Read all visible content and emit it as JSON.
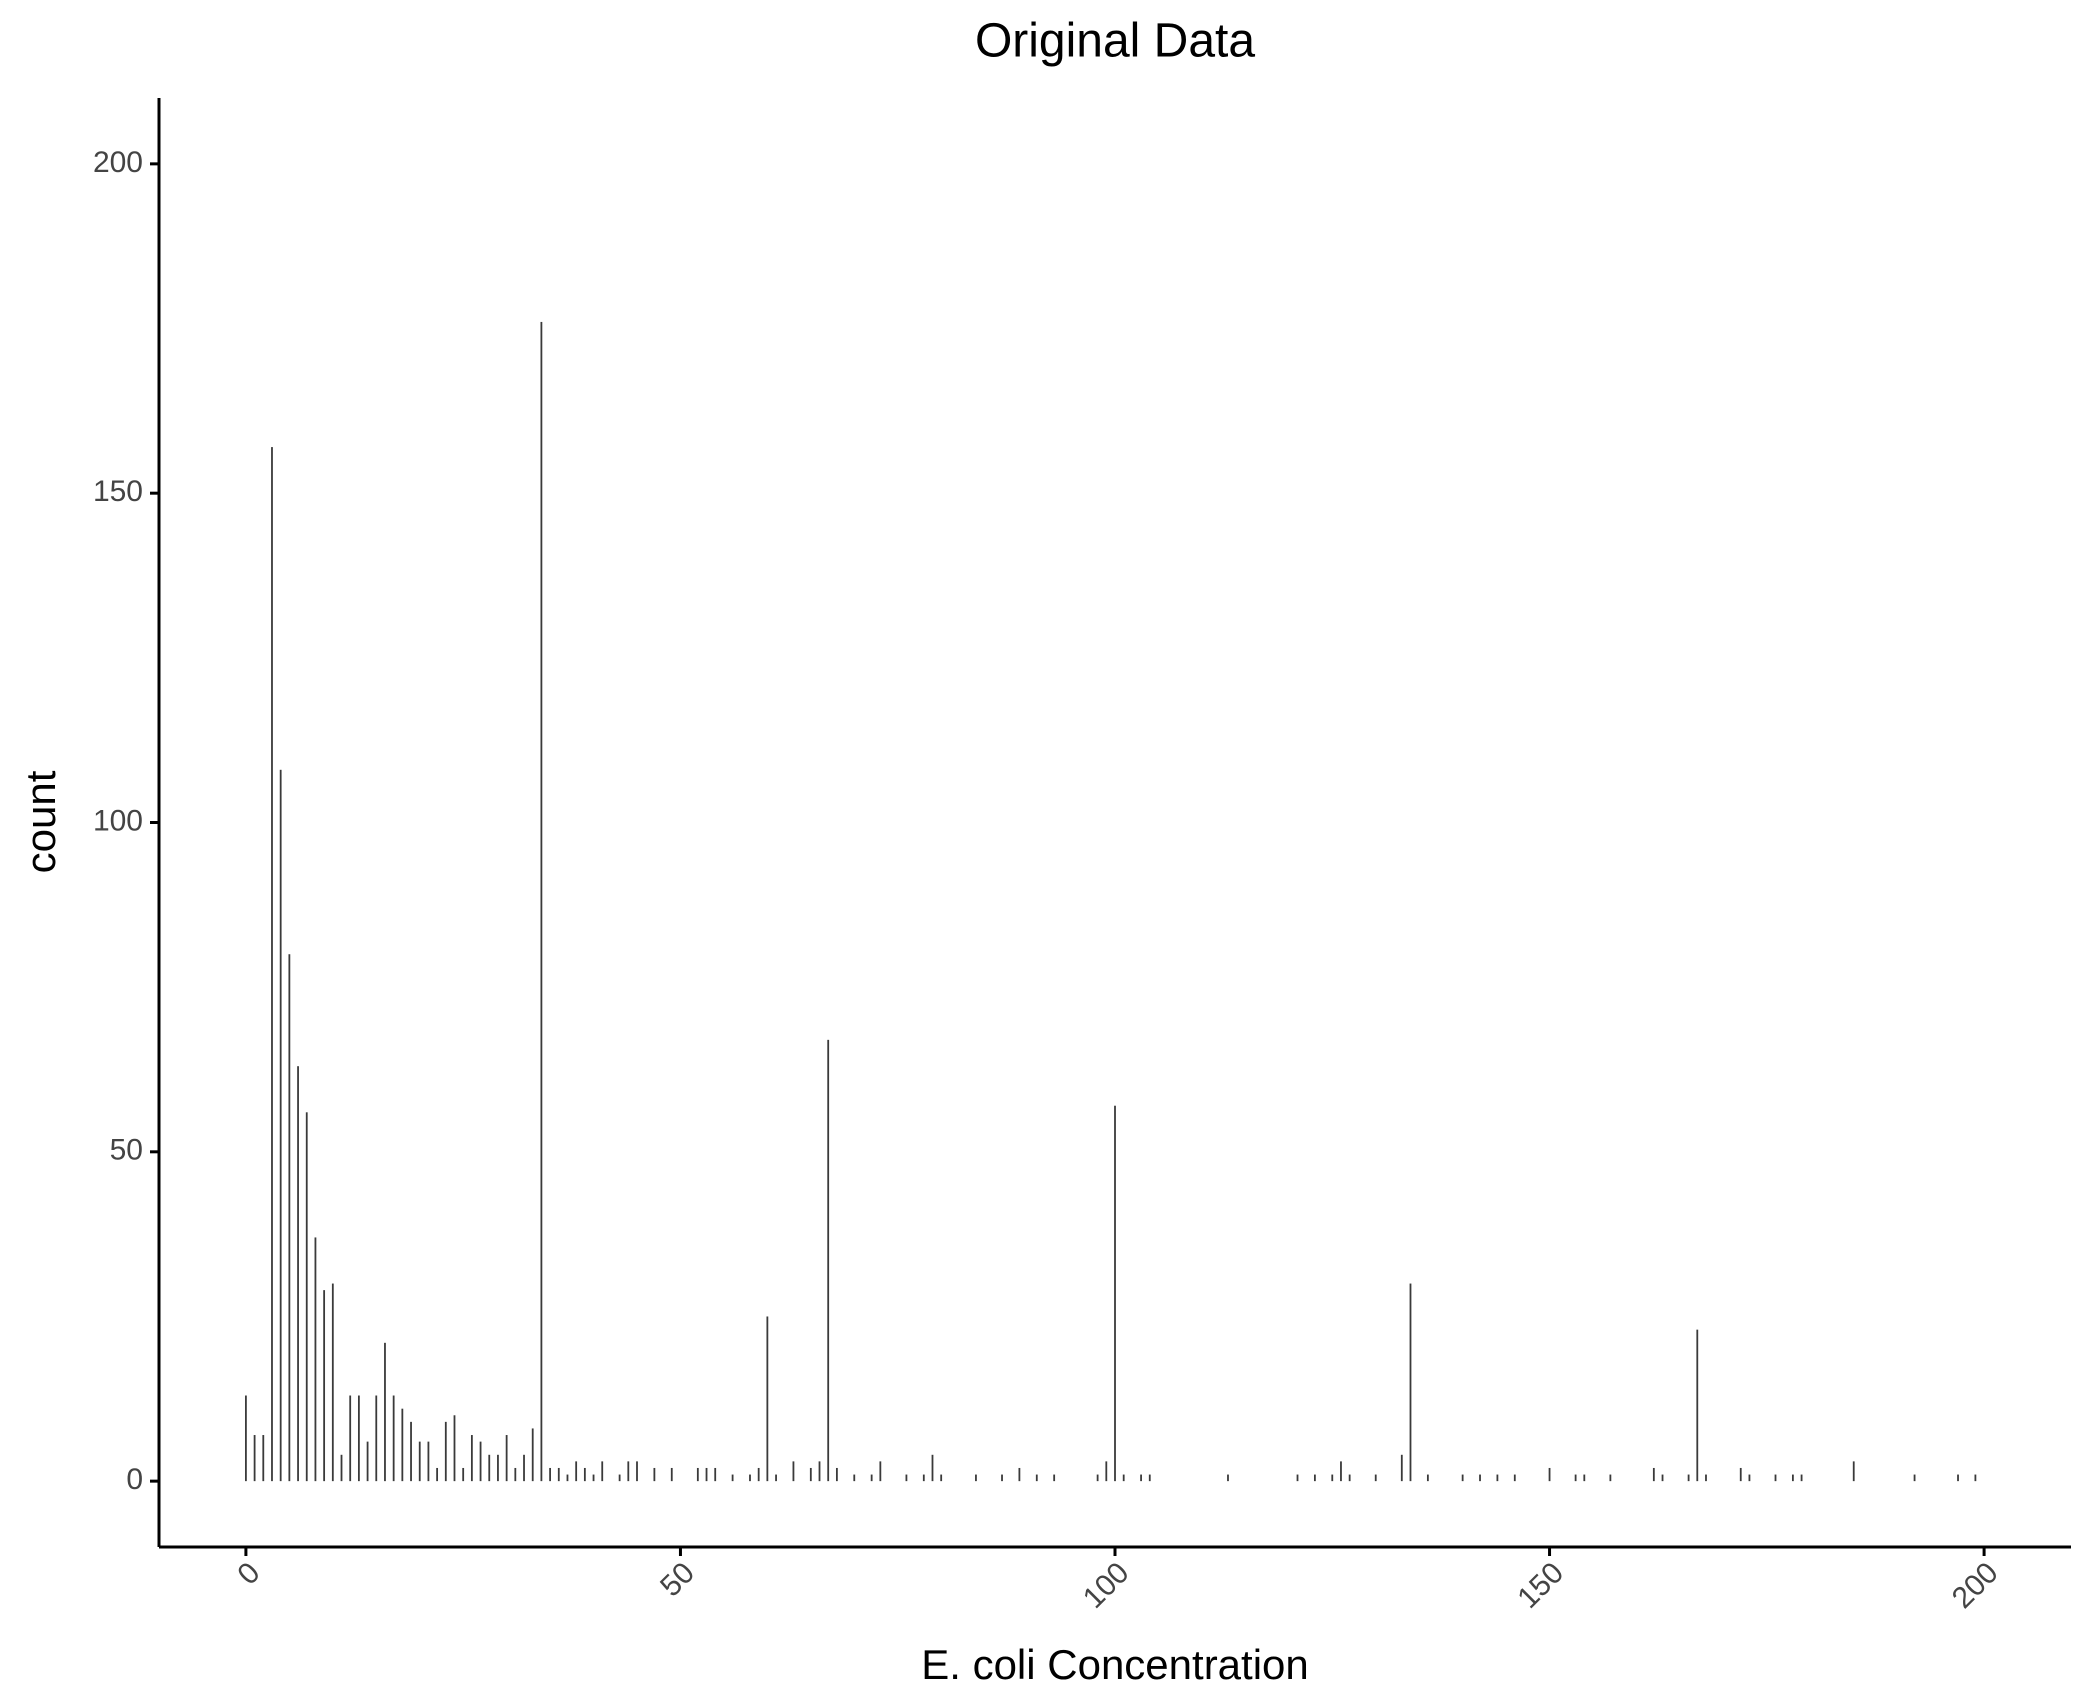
{
  "chart_data": {
    "type": "bar",
    "title": "Original Data",
    "x_label": "E. coli Concentration",
    "y_label": "count",
    "x": [
      0,
      1,
      2,
      3,
      4,
      5,
      6,
      7,
      8,
      9,
      10,
      11,
      12,
      13,
      14,
      15,
      16,
      17,
      18,
      19,
      20,
      21,
      22,
      23,
      24,
      25,
      26,
      27,
      28,
      29,
      30,
      31,
      32,
      33,
      34,
      35,
      36,
      37,
      38,
      39,
      40,
      41,
      43,
      44,
      45,
      47,
      49,
      52,
      53,
      54,
      56,
      58,
      59,
      60,
      61,
      63,
      65,
      66,
      67,
      68,
      70,
      72,
      73,
      76,
      78,
      79,
      80,
      84,
      87,
      89,
      91,
      93,
      98,
      99,
      100,
      101,
      103,
      104,
      113,
      121,
      123,
      125,
      126,
      127,
      130,
      133,
      134,
      136,
      140,
      142,
      144,
      146,
      150,
      153,
      154,
      157,
      162,
      163,
      166,
      167,
      168,
      172,
      173,
      176,
      178,
      179,
      185,
      192,
      197,
      199
    ],
    "values": [
      13,
      7,
      7,
      157,
      108,
      80,
      63,
      56,
      37,
      29,
      30,
      4,
      13,
      13,
      6,
      13,
      21,
      13,
      11,
      9,
      6,
      6,
      2,
      9,
      10,
      2,
      7,
      6,
      4,
      4,
      7,
      2,
      4,
      8,
      176,
      2,
      2,
      1,
      3,
      2,
      1,
      3,
      1,
      3,
      3,
      2,
      2,
      2,
      2,
      2,
      1,
      1,
      2,
      25,
      1,
      3,
      2,
      3,
      67,
      2,
      1,
      1,
      3,
      1,
      1,
      4,
      1,
      1,
      1,
      2,
      1,
      1,
      1,
      3,
      57,
      1,
      1,
      1,
      1,
      1,
      1,
      1,
      3,
      1,
      1,
      4,
      30,
      1,
      1,
      1,
      1,
      1,
      2,
      1,
      1,
      1,
      2,
      1,
      1,
      23,
      1,
      2,
      1,
      1,
      1,
      1,
      3,
      1,
      1,
      1
    ],
    "color": "#3a3a3a",
    "xlim": [
      -10,
      210
    ],
    "xticks": [
      0,
      50,
      100,
      150,
      200
    ],
    "ylim": [
      -10,
      210
    ],
    "yticks": [
      0,
      50,
      100,
      150,
      200
    ],
    "grid": false
  }
}
